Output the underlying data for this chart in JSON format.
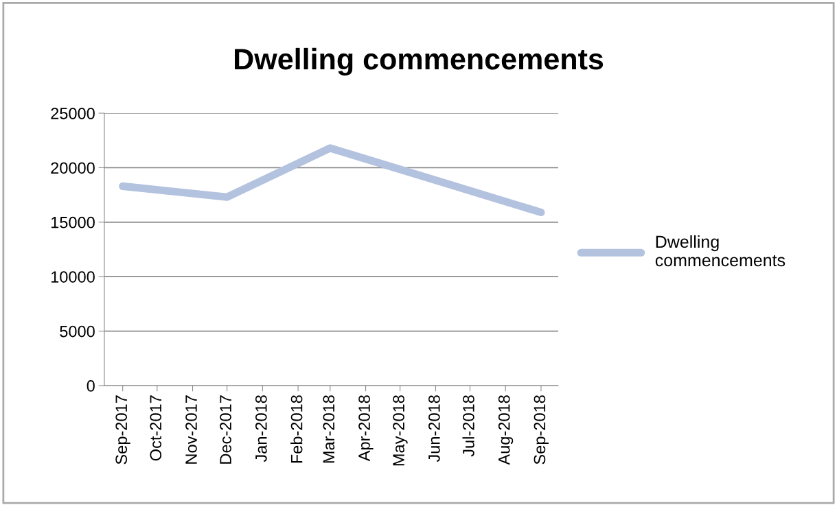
{
  "chart_data": {
    "type": "line",
    "title": "Dwelling commencements",
    "x": [
      "2017-09",
      "2017-12",
      "2018-03",
      "2018-09"
    ],
    "series": [
      {
        "name": "Dwelling\ncommencements",
        "color": "#b3c2df",
        "values": [
          18300,
          17300,
          21800,
          15900
        ]
      }
    ],
    "xlim": [
      "2017-08-16",
      "2018-09-16"
    ],
    "xticks": [
      {
        "value": "2017-09",
        "label": "Sep-2017"
      },
      {
        "value": "2017-10",
        "label": "Oct-2017"
      },
      {
        "value": "2017-11",
        "label": "Nov-2017"
      },
      {
        "value": "2017-12",
        "label": "Dec-2017"
      },
      {
        "value": "2018-01",
        "label": "Jan-2018"
      },
      {
        "value": "2018-02",
        "label": "Feb-2018"
      },
      {
        "value": "2018-03",
        "label": "Mar-2018"
      },
      {
        "value": "2018-04",
        "label": "Apr-2018"
      },
      {
        "value": "2018-05",
        "label": "May-2018"
      },
      {
        "value": "2018-06",
        "label": "Jun-2018"
      },
      {
        "value": "2018-07",
        "label": "Jul-2018"
      },
      {
        "value": "2018-08",
        "label": "Aug-2018"
      },
      {
        "value": "2018-09",
        "label": "Sep-2018"
      }
    ],
    "ylim": [
      0,
      25000
    ],
    "yticks": [
      0,
      5000,
      10000,
      15000,
      20000,
      25000
    ],
    "grid": "y",
    "legend": "right",
    "line_style": "solid"
  }
}
